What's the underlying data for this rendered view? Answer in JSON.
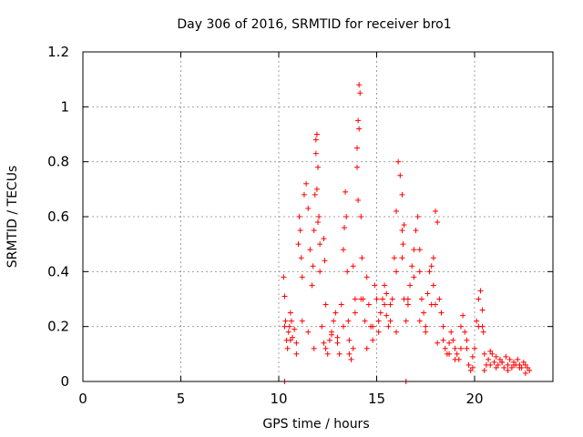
{
  "chart_data": {
    "type": "scatter",
    "title": "Day 306 of 2016, SRMTID for receiver bro1",
    "xlabel": "GPS time / hours",
    "ylabel": "SRMTID / TECUs",
    "xlim": [
      0,
      24
    ],
    "ylim": [
      0,
      1.2
    ],
    "xticks": [
      0,
      5,
      10,
      15,
      20
    ],
    "xtick_labels": [
      "0",
      "5",
      "10",
      "15",
      "20"
    ],
    "yticks": [
      0,
      0.2,
      0.4,
      0.6,
      0.8,
      1.0,
      1.2
    ],
    "ytick_labels": [
      "0",
      "0.2",
      "0.4",
      "0.6",
      "0.8",
      "1",
      "1.2"
    ],
    "grid": true,
    "marker": "+",
    "color": "#ff0000",
    "series": [
      {
        "name": "SRMTID",
        "x": [
          10.25,
          10.3,
          10.35,
          10.4,
          10.45,
          10.5,
          10.55,
          10.6,
          10.65,
          10.7,
          10.8,
          10.9,
          11.0,
          11.05,
          11.1,
          11.15,
          11.2,
          11.3,
          11.4,
          11.5,
          11.6,
          11.7,
          11.75,
          11.8,
          11.85,
          11.9,
          11.95,
          12.0,
          12.05,
          12.1,
          12.2,
          12.3,
          12.4,
          12.5,
          12.6,
          12.7,
          12.8,
          12.9,
          13.0,
          13.1,
          13.2,
          13.3,
          13.35,
          13.4,
          13.45,
          13.5,
          13.55,
          13.6,
          13.7,
          13.8,
          13.9,
          14.0,
          14.05,
          14.1,
          14.15,
          14.2,
          14.25,
          14.3,
          14.4,
          14.5,
          14.6,
          14.7,
          14.8,
          14.9,
          15.0,
          15.1,
          15.2,
          15.3,
          15.4,
          15.5,
          15.6,
          15.7,
          15.8,
          15.9,
          16.0,
          16.1,
          16.2,
          16.3,
          16.4,
          16.5,
          16.6,
          16.7,
          16.8,
          16.9,
          17.0,
          17.1,
          17.2,
          17.3,
          17.4,
          17.5,
          17.6,
          17.7,
          17.8,
          17.9,
          18.0,
          18.1,
          18.2,
          18.3,
          18.4,
          18.5,
          18.6,
          18.7,
          18.8,
          18.9,
          19.0,
          19.1,
          19.2,
          19.3,
          19.4,
          19.5,
          19.6,
          19.7,
          19.8,
          19.9,
          20.0,
          20.1,
          20.2,
          20.3,
          20.4,
          20.5,
          20.6,
          20.7,
          20.8,
          20.9,
          21.0,
          21.1,
          21.2,
          21.3,
          21.4,
          21.5,
          21.6,
          21.7,
          21.8,
          21.9,
          22.0,
          22.1,
          22.2,
          22.3,
          22.4,
          22.5,
          22.6,
          22.7,
          22.8,
          10.3,
          10.6,
          10.9,
          11.2,
          11.5,
          11.8,
          12.1,
          12.4,
          12.7,
          13.0,
          13.3,
          13.6,
          13.9,
          14.2,
          14.5,
          14.8,
          15.1,
          15.4,
          15.7,
          16.0,
          16.3,
          16.6,
          16.9,
          17.2,
          17.5,
          17.8,
          18.1,
          18.4,
          18.7,
          19.0,
          19.3,
          19.6,
          19.9,
          20.2,
          20.5,
          20.8,
          21.1,
          21.4,
          21.7,
          22.0,
          22.3,
          22.6,
          11.9,
          11.95,
          12.0,
          14.0,
          14.05,
          14.1,
          16.3,
          16.35,
          16.4,
          17.9,
          18.0,
          12.3,
          12.35,
          13.8,
          15.5,
          16.0,
          17.2,
          20.4,
          20.45,
          10.3,
          16.5
        ],
        "y": [
          0.38,
          0.31,
          0.22,
          0.15,
          0.12,
          0.18,
          0.2,
          0.25,
          0.22,
          0.16,
          0.19,
          0.14,
          0.5,
          0.6,
          0.55,
          0.45,
          0.38,
          0.68,
          0.72,
          0.63,
          0.48,
          0.35,
          0.42,
          0.55,
          0.68,
          0.88,
          0.9,
          0.78,
          0.6,
          0.5,
          0.2,
          0.14,
          0.12,
          0.1,
          0.15,
          0.18,
          0.22,
          0.25,
          0.16,
          0.1,
          0.28,
          0.48,
          0.56,
          0.69,
          0.6,
          0.4,
          0.22,
          0.15,
          0.08,
          0.12,
          0.3,
          0.85,
          0.95,
          1.08,
          1.05,
          0.6,
          0.45,
          0.3,
          0.22,
          0.38,
          0.28,
          0.2,
          0.15,
          0.35,
          0.3,
          0.22,
          0.25,
          0.3,
          0.28,
          0.24,
          0.2,
          0.22,
          0.3,
          0.45,
          0.62,
          0.8,
          0.75,
          0.55,
          0.3,
          0.22,
          0.28,
          0.35,
          0.42,
          0.48,
          0.55,
          0.6,
          0.4,
          0.3,
          0.25,
          0.2,
          0.32,
          0.4,
          0.42,
          0.45,
          0.62,
          0.58,
          0.3,
          0.25,
          0.15,
          0.12,
          0.1,
          0.14,
          0.18,
          0.15,
          0.12,
          0.1,
          0.08,
          0.2,
          0.24,
          0.18,
          0.12,
          0.06,
          0.04,
          0.05,
          0.12,
          0.22,
          0.3,
          0.33,
          0.2,
          0.1,
          0.06,
          0.08,
          0.11,
          0.1,
          0.07,
          0.09,
          0.06,
          0.08,
          0.07,
          0.05,
          0.09,
          0.06,
          0.08,
          0.05,
          0.07,
          0.06,
          0.08,
          0.06,
          0.05,
          0.07,
          0.06,
          0.05,
          0.04,
          0.2,
          0.15,
          0.1,
          0.22,
          0.18,
          0.12,
          0.4,
          0.28,
          0.17,
          0.14,
          0.2,
          0.1,
          0.25,
          0.3,
          0.12,
          0.2,
          0.18,
          0.35,
          0.28,
          0.4,
          0.45,
          0.3,
          0.38,
          0.22,
          0.18,
          0.28,
          0.14,
          0.2,
          0.1,
          0.08,
          0.12,
          0.15,
          0.09,
          0.2,
          0.04,
          0.06,
          0.05,
          0.07,
          0.04,
          0.06,
          0.05,
          0.03,
          0.83,
          0.7,
          0.58,
          0.78,
          0.66,
          0.92,
          0.68,
          0.5,
          0.57,
          0.35,
          0.28,
          0.52,
          0.44,
          0.42,
          0.32,
          0.18,
          0.48,
          0.26,
          0.18,
          0.0,
          0.0
        ]
      }
    ]
  }
}
